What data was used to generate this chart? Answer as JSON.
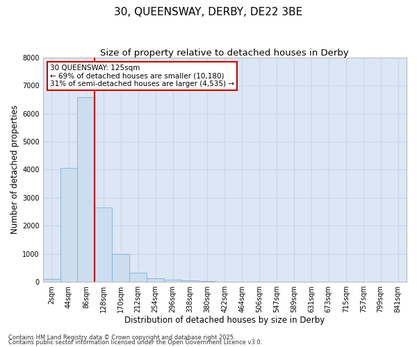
{
  "title_line1": "30, QUEENSWAY, DERBY, DE22 3BE",
  "title_line2": "Size of property relative to detached houses in Derby",
  "xlabel": "Distribution of detached houses by size in Derby",
  "ylabel": "Number of detached properties",
  "categories": [
    "2sqm",
    "44sqm",
    "86sqm",
    "128sqm",
    "170sqm",
    "212sqm",
    "254sqm",
    "296sqm",
    "338sqm",
    "380sqm",
    "422sqm",
    "464sqm",
    "506sqm",
    "547sqm",
    "589sqm",
    "631sqm",
    "673sqm",
    "715sqm",
    "757sqm",
    "799sqm",
    "841sqm"
  ],
  "values": [
    100,
    4050,
    6600,
    2650,
    1000,
    330,
    120,
    70,
    50,
    20,
    0,
    0,
    0,
    0,
    0,
    0,
    0,
    0,
    0,
    0,
    0
  ],
  "bar_color": "#ccddf0",
  "bar_edge_color": "#7ab0d8",
  "ylim": [
    0,
    8000
  ],
  "yticks": [
    0,
    1000,
    2000,
    3000,
    4000,
    5000,
    6000,
    7000,
    8000
  ],
  "red_line_index": 3,
  "annotation_title": "30 QUEENSWAY: 125sqm",
  "annotation_line1": "← 69% of detached houses are smaller (10,180)",
  "annotation_line2": "31% of semi-detached houses are larger (4,535) →",
  "annotation_box_color": "#ffffff",
  "annotation_box_edge": "#cc0000",
  "red_line_color": "#cc0000",
  "grid_color": "#c8d4e8",
  "bg_color": "#dde6f5",
  "footer_line1": "Contains HM Land Registry data © Crown copyright and database right 2025.",
  "footer_line2": "Contains public sector information licensed under the Open Government Licence v3.0.",
  "title_fontsize": 11,
  "subtitle_fontsize": 9.5,
  "tick_fontsize": 7,
  "label_fontsize": 8.5,
  "annotation_fontsize": 7.5,
  "footer_fontsize": 6
}
